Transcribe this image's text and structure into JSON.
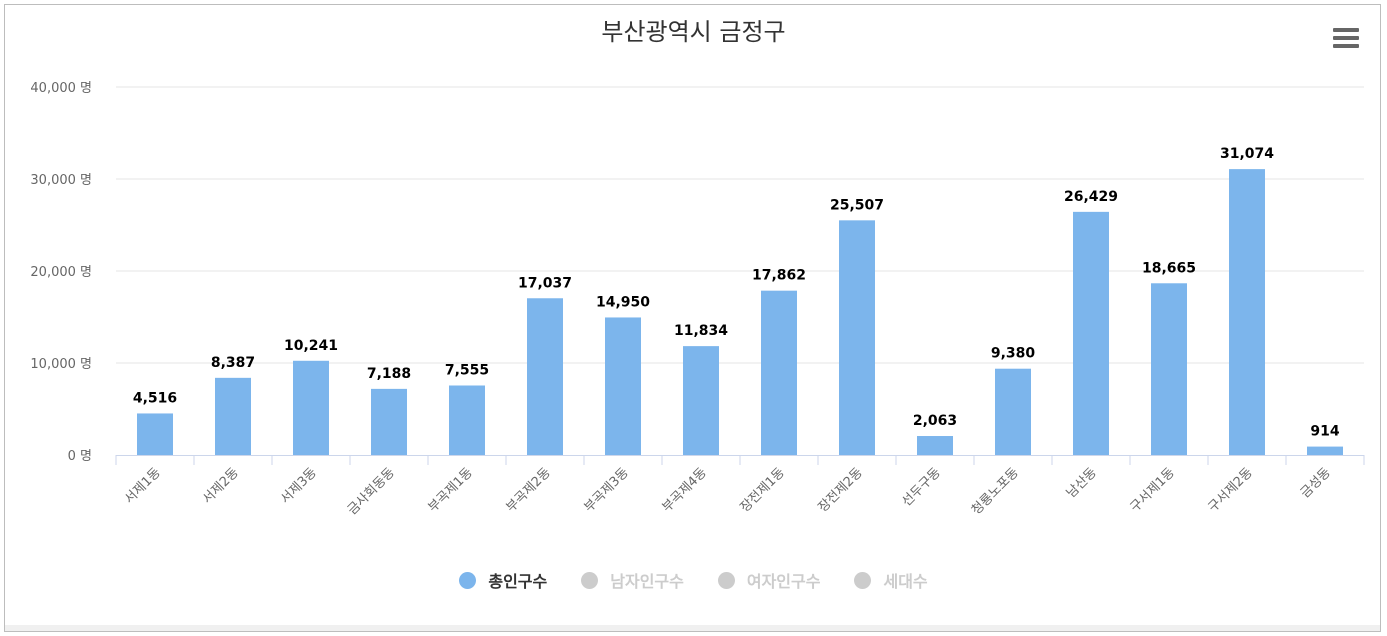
{
  "chart_data": {
    "type": "bar",
    "title": "부산광역시 금정구",
    "categories": [
      "서제1동",
      "서제2동",
      "서제3동",
      "금사회동동",
      "부곡제1동",
      "부곡제2동",
      "부곡제3동",
      "부곡제4동",
      "장전제1동",
      "장전제2동",
      "선두구동",
      "청룡노포동",
      "남산동",
      "구서제1동",
      "구서제2동",
      "금성동"
    ],
    "series": [
      {
        "name": "총인구수",
        "values": [
          4516,
          8387,
          10241,
          7188,
          7555,
          17037,
          14950,
          11834,
          17862,
          25507,
          2063,
          9380,
          26429,
          18665,
          31074,
          914
        ],
        "color": "#7cb5ec"
      }
    ],
    "data_labels": [
      "4,516",
      "8,387",
      "10,241",
      "7,188",
      "7,555",
      "17,037",
      "14,950",
      "11,834",
      "17,862",
      "25,507",
      "2,063",
      "9,380",
      "26,429",
      "18,665",
      "31,074",
      "914"
    ],
    "ylim": [
      0,
      40000
    ],
    "y_ticks": [
      0,
      10000,
      20000,
      30000,
      40000
    ],
    "y_tick_labels": [
      "0 명",
      "10,000 명",
      "20,000 명",
      "30,000 명",
      "40,000 명"
    ],
    "grid": true,
    "legend_position": "bottom-center",
    "legend": [
      {
        "label": "총인구수",
        "active": true,
        "color": "#7cb5ec"
      },
      {
        "label": "남자인구수",
        "active": false,
        "color": "#cccccc"
      },
      {
        "label": "여자인구수",
        "active": false,
        "color": "#cccccc"
      },
      {
        "label": "세대수",
        "active": false,
        "color": "#cccccc"
      }
    ]
  },
  "icons": {
    "menu": "hamburger-menu-icon"
  }
}
